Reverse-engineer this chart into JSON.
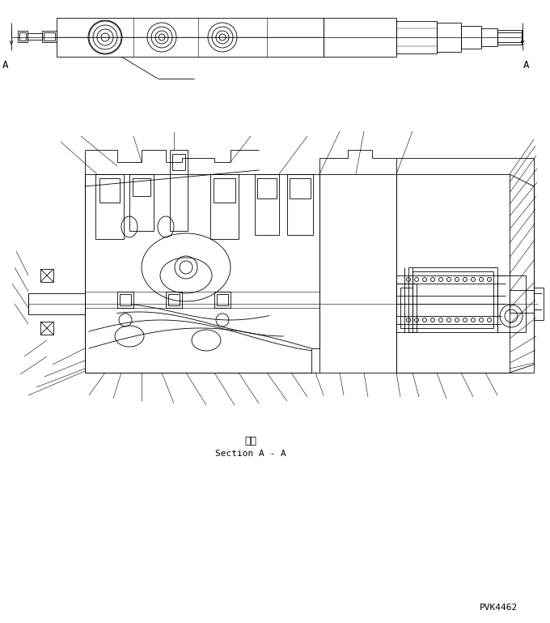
{
  "bg_color": "#ffffff",
  "line_color": "#000000",
  "section_label_jp": "断面",
  "section_label_en": "Section A - A",
  "part_number": "PVK4462",
  "fig_width": 6.8,
  "fig_height": 7.69,
  "dpi": 100
}
